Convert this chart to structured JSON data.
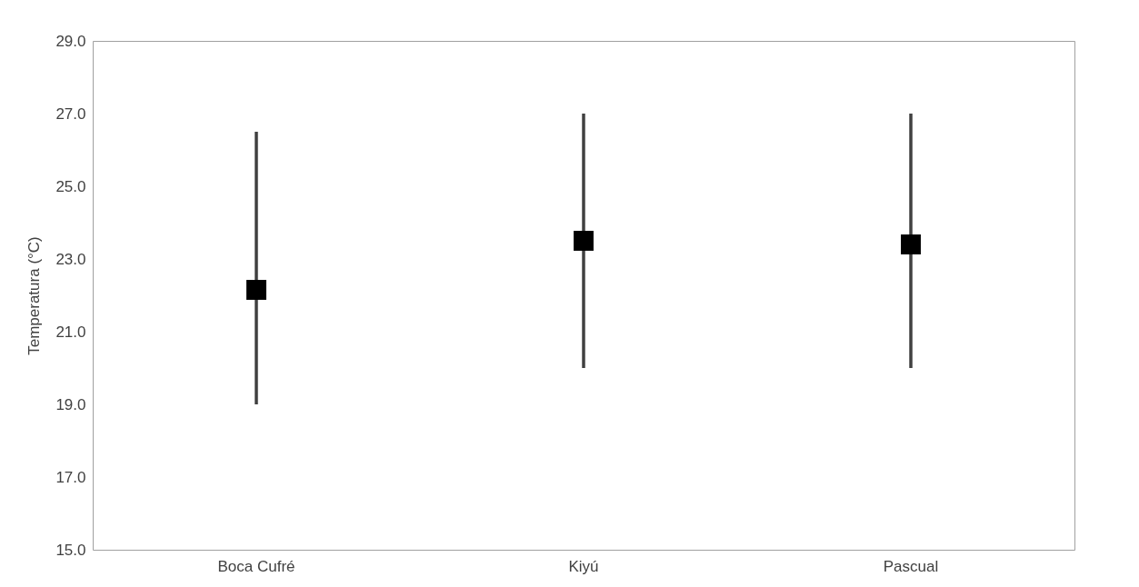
{
  "chart_data": {
    "type": "scatter",
    "ylabel": "Temperatura (°C)",
    "categories": [
      "Boca Cufré",
      "Kiyú",
      "Pascual"
    ],
    "values": [
      22.15,
      23.5,
      23.4
    ],
    "errors": [
      [
        19.0,
        26.5
      ],
      [
        20.0,
        27.0
      ],
      [
        20.0,
        27.0
      ]
    ],
    "color": "#000000",
    "marker": "square",
    "ylim": [
      15,
      29
    ],
    "yticks": [
      {
        "value": 15,
        "label": "15.0"
      },
      {
        "value": 17,
        "label": "17.0"
      },
      {
        "value": 19,
        "label": "19.0"
      },
      {
        "value": 21,
        "label": "21.0"
      },
      {
        "value": 23,
        "label": "23.0"
      },
      {
        "value": 25,
        "label": "25.0"
      },
      {
        "value": 27,
        "label": "27.0"
      },
      {
        "value": 29,
        "label": "29.0"
      }
    ]
  }
}
